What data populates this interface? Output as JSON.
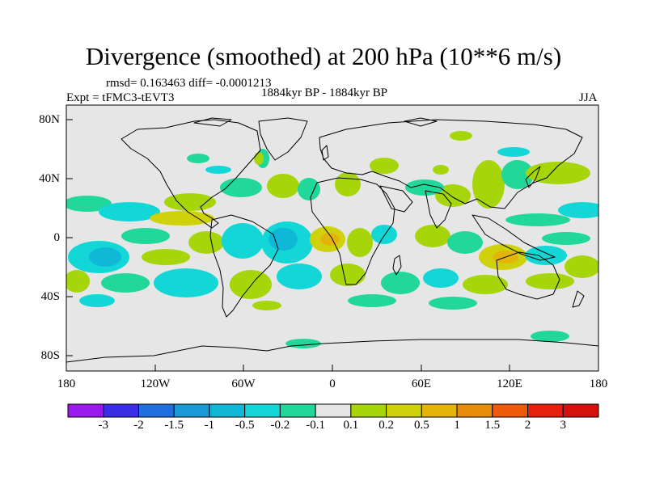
{
  "title": "Divergence (smoothed) at 200 hPa (10**6 m/s)",
  "stats": "rmsd= 0.163463 diff= -0.0001213",
  "experiment": "Expt = tFMC3-tEVT3",
  "period": "1884kyr BP - 1884kyr BP",
  "season": "JJA",
  "map": {
    "lat_ticks": [
      "80N",
      "40N",
      "0",
      "40S",
      "80S"
    ],
    "lon_ticks": [
      "180",
      "120W",
      "60W",
      "0",
      "60E",
      "120E",
      "180"
    ],
    "lat_range": [
      -90,
      90
    ],
    "lon_range": [
      -180,
      180
    ]
  },
  "colorbar": {
    "labels": [
      "-3",
      "-2",
      "-1.5",
      "-1",
      "-0.5",
      "-0.2",
      "-0.1",
      "0.1",
      "0.2",
      "0.5",
      "1",
      "1.5",
      "2",
      "3"
    ],
    "colors": [
      "#9a19ec",
      "#3a2fe6",
      "#1f6fe0",
      "#189bd8",
      "#10b8d8",
      "#13d6d6",
      "#22d79a",
      "#e6e6e6",
      "#a6d60a",
      "#cfd10a",
      "#e3b50a",
      "#e88a0a",
      "#ec5a0a",
      "#e6200c",
      "#d8100c"
    ]
  },
  "colors": {
    "background": "#ffffff",
    "map_fill": "#e6e6e6",
    "coast": "#000000"
  }
}
